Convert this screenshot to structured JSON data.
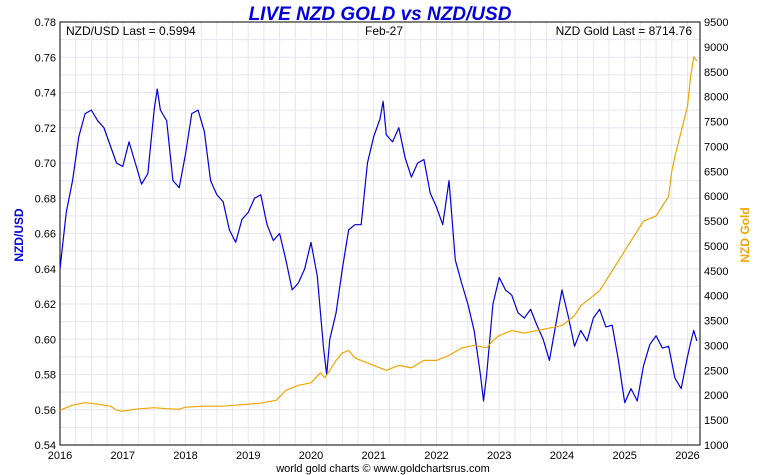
{
  "chart_data": {
    "type": "line",
    "title": "LIVE NZD GOLD vs NZD/USD",
    "header_left": "NZD/USD Last = 0.5994",
    "header_center": "Feb-27",
    "header_right": "NZD Gold Last = 8714.76",
    "footer": "world gold charts © www.goldchartsrus.com",
    "ylabel_left": "NZD/USD",
    "ylabel_right": "NZD Gold",
    "xlim": [
      2016.0,
      2026.2
    ],
    "ylim_left": [
      0.54,
      0.78
    ],
    "ylim_right": [
      1000,
      9500
    ],
    "x_ticks": [
      2016,
      2017,
      2018,
      2019,
      2020,
      2021,
      2022,
      2023,
      2024,
      2025,
      2026
    ],
    "y_ticks_left": [
      "0.54",
      "0.56",
      "0.58",
      "0.60",
      "0.62",
      "0.64",
      "0.66",
      "0.68",
      "0.70",
      "0.72",
      "0.74",
      "0.76",
      "0.78"
    ],
    "y_ticks_right": [
      "1000",
      "1500",
      "2000",
      "2500",
      "3000",
      "3500",
      "4000",
      "4500",
      "5000",
      "5500",
      "6000",
      "6500",
      "7000",
      "7500",
      "8000",
      "8500",
      "9000",
      "9500"
    ],
    "grid": true,
    "colors": {
      "title": "#0000dd",
      "nzdusd": "#0000dd",
      "gold": "#f0a500",
      "grid": "#e6e6f0"
    },
    "series": [
      {
        "name": "NZD/USD",
        "axis": "left",
        "x": [
          2016.0,
          2016.1,
          2016.2,
          2016.3,
          2016.4,
          2016.5,
          2016.6,
          2016.7,
          2016.8,
          2016.9,
          2017.0,
          2017.1,
          2017.2,
          2017.3,
          2017.4,
          2017.5,
          2017.55,
          2017.6,
          2017.7,
          2017.8,
          2017.9,
          2018.0,
          2018.1,
          2018.2,
          2018.3,
          2018.4,
          2018.5,
          2018.6,
          2018.7,
          2018.8,
          2018.9,
          2019.0,
          2019.1,
          2019.2,
          2019.3,
          2019.4,
          2019.5,
          2019.6,
          2019.7,
          2019.8,
          2019.9,
          2020.0,
          2020.1,
          2020.2,
          2020.25,
          2020.3,
          2020.4,
          2020.5,
          2020.6,
          2020.7,
          2020.8,
          2020.9,
          2021.0,
          2021.1,
          2021.15,
          2021.2,
          2021.3,
          2021.4,
          2021.5,
          2021.6,
          2021.7,
          2021.8,
          2021.9,
          2022.0,
          2022.1,
          2022.2,
          2022.3,
          2022.4,
          2022.5,
          2022.6,
          2022.7,
          2022.75,
          2022.8,
          2022.9,
          2023.0,
          2023.1,
          2023.2,
          2023.3,
          2023.4,
          2023.5,
          2023.6,
          2023.7,
          2023.8,
          2023.9,
          2024.0,
          2024.1,
          2024.2,
          2024.3,
          2024.4,
          2024.5,
          2024.6,
          2024.7,
          2024.8,
          2024.9,
          2025.0,
          2025.1,
          2025.2,
          2025.3,
          2025.4,
          2025.5,
          2025.6,
          2025.7,
          2025.8,
          2025.9,
          2026.0,
          2026.05,
          2026.1,
          2026.15
        ],
        "y": [
          0.64,
          0.672,
          0.69,
          0.715,
          0.728,
          0.73,
          0.724,
          0.72,
          0.71,
          0.7,
          0.698,
          0.712,
          0.7,
          0.688,
          0.694,
          0.73,
          0.742,
          0.73,
          0.724,
          0.69,
          0.686,
          0.705,
          0.728,
          0.73,
          0.718,
          0.69,
          0.682,
          0.678,
          0.662,
          0.655,
          0.668,
          0.672,
          0.68,
          0.682,
          0.665,
          0.656,
          0.66,
          0.645,
          0.628,
          0.632,
          0.64,
          0.655,
          0.636,
          0.595,
          0.58,
          0.6,
          0.615,
          0.64,
          0.662,
          0.665,
          0.665,
          0.7,
          0.715,
          0.725,
          0.735,
          0.716,
          0.712,
          0.72,
          0.703,
          0.692,
          0.7,
          0.702,
          0.683,
          0.675,
          0.665,
          0.69,
          0.645,
          0.632,
          0.62,
          0.605,
          0.58,
          0.565,
          0.58,
          0.62,
          0.635,
          0.628,
          0.625,
          0.615,
          0.612,
          0.617,
          0.608,
          0.6,
          0.588,
          0.608,
          0.628,
          0.613,
          0.596,
          0.605,
          0.599,
          0.612,
          0.617,
          0.607,
          0.608,
          0.588,
          0.564,
          0.572,
          0.565,
          0.585,
          0.597,
          0.602,
          0.595,
          0.596,
          0.578,
          0.572,
          0.59,
          0.598,
          0.605,
          0.599
        ]
      },
      {
        "name": "NZD Gold",
        "axis": "right",
        "x": [
          2016.0,
          2016.1,
          2016.2,
          2016.4,
          2016.6,
          2016.8,
          2016.9,
          2017.0,
          2017.2,
          2017.5,
          2017.7,
          2017.9,
          2018.0,
          2018.3,
          2018.6,
          2018.8,
          2019.0,
          2019.2,
          2019.45,
          2019.6,
          2019.8,
          2020.0,
          2020.15,
          2020.22,
          2020.3,
          2020.4,
          2020.5,
          2020.6,
          2020.7,
          2020.9,
          2021.0,
          2021.2,
          2021.4,
          2021.6,
          2021.8,
          2022.0,
          2022.2,
          2022.4,
          2022.6,
          2022.8,
          2022.9,
          2023.0,
          2023.2,
          2023.4,
          2023.6,
          2023.8,
          2024.0,
          2024.2,
          2024.3,
          2024.4,
          2024.6,
          2024.8,
          2025.0,
          2025.1,
          2025.2,
          2025.3,
          2025.5,
          2025.6,
          2025.7,
          2025.75,
          2025.8,
          2025.9,
          2026.0,
          2026.05,
          2026.1,
          2026.15
        ],
        "y": [
          1700,
          1750,
          1800,
          1850,
          1820,
          1780,
          1700,
          1680,
          1720,
          1750,
          1730,
          1720,
          1760,
          1780,
          1780,
          1800,
          1820,
          1840,
          1900,
          2100,
          2200,
          2250,
          2450,
          2350,
          2500,
          2700,
          2850,
          2900,
          2750,
          2650,
          2600,
          2500,
          2600,
          2550,
          2700,
          2700,
          2800,
          2950,
          3000,
          2950,
          3100,
          3200,
          3300,
          3250,
          3300,
          3350,
          3400,
          3600,
          3800,
          3900,
          4100,
          4500,
          4900,
          5100,
          5300,
          5500,
          5600,
          5800,
          6000,
          6500,
          6800,
          7300,
          7800,
          8400,
          8800,
          8714.76
        ]
      }
    ]
  }
}
